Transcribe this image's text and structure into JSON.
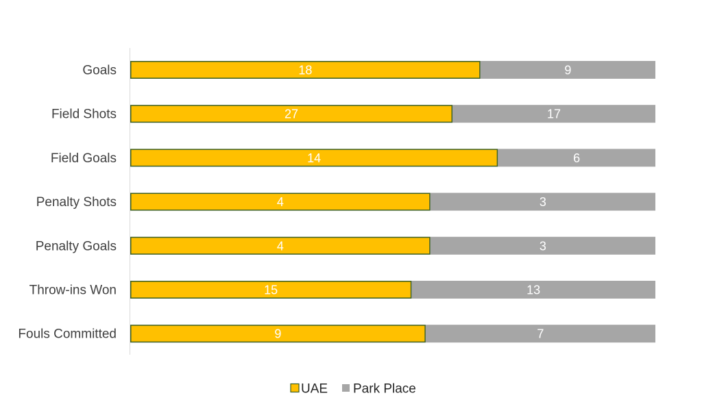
{
  "chart_data": {
    "type": "bar",
    "orientation": "horizontal",
    "stacking": "percent",
    "categories": [
      "Goals",
      "Field Shots",
      "Field Goals",
      "Penalty Shots",
      "Penalty Goals",
      "Throw-ins Won",
      "Fouls Committed"
    ],
    "series": [
      {
        "name": "UAE",
        "values": [
          18,
          27,
          14,
          4,
          4,
          15,
          9
        ],
        "color": "#FFC000",
        "border": "#3A5E23"
      },
      {
        "name": "Park Place",
        "values": [
          9,
          17,
          6,
          3,
          3,
          13,
          7
        ],
        "color": "#A6A6A6"
      }
    ],
    "xlim": [
      0,
      1
    ],
    "grid": false,
    "legend_position": "bottom"
  }
}
